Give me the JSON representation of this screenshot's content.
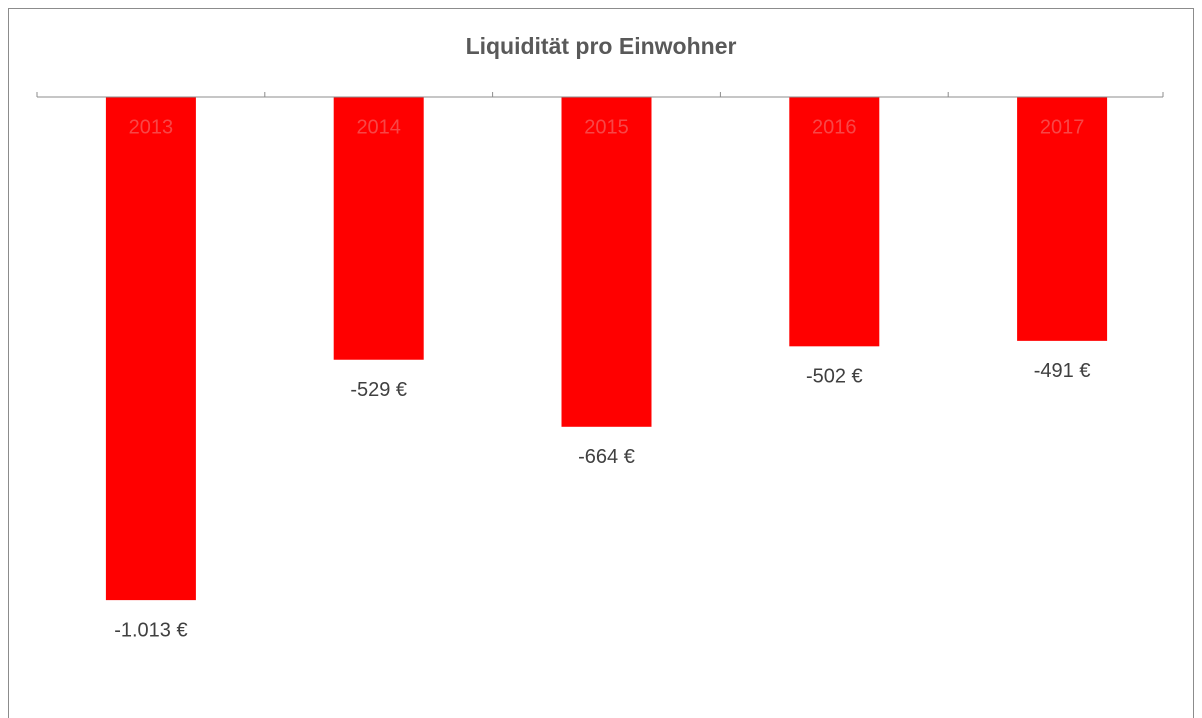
{
  "chart_data": {
    "type": "bar",
    "title": "Liquidität pro Einwohner",
    "categories": [
      "2013",
      "2014",
      "2015",
      "2016",
      "2017"
    ],
    "values": [
      -1013,
      -529,
      -664,
      -502,
      -491
    ],
    "value_labels": [
      "-1.013 €",
      "-529 €",
      "-664 €",
      "-502 €",
      "-491 €"
    ],
    "color": "#ff0000",
    "ylim": [
      -1200,
      0
    ]
  }
}
